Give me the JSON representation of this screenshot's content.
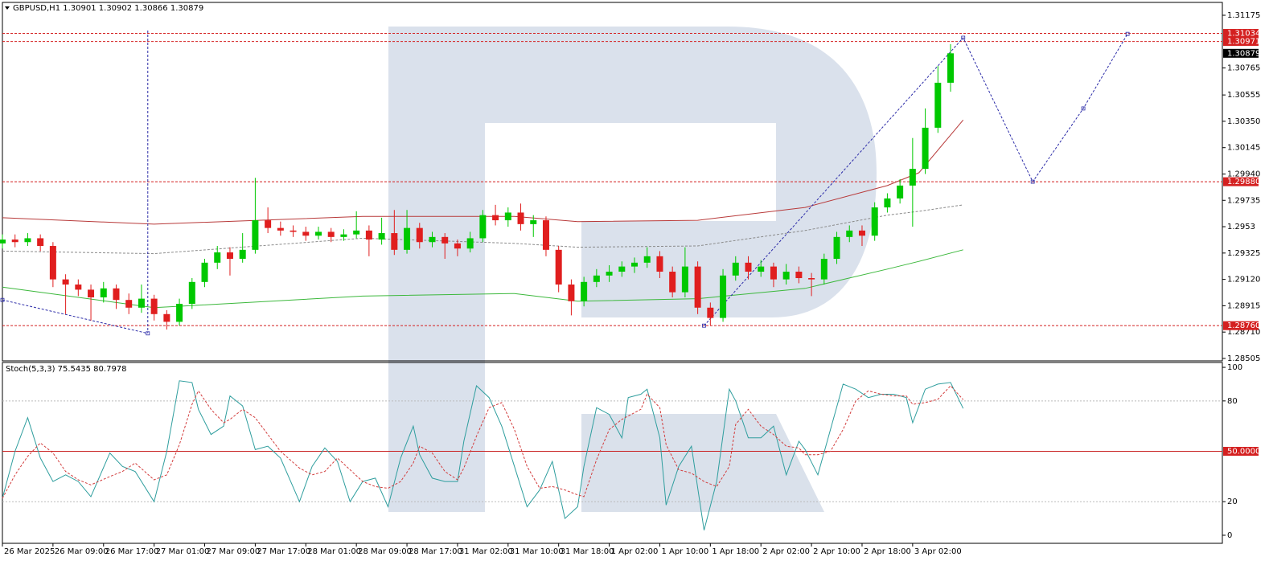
{
  "chart_data": [
    {
      "type": "candlestick",
      "title": "GBPUSD,H1 1.30901 1.30902 1.30866 1.30879",
      "up_color": "#00c800",
      "down_color": "#e01e1e",
      "xlim": [
        0,
        193
      ],
      "ylim": [
        1.28486,
        1.31275
      ],
      "yticks": [
        1.31175,
        1.30765,
        1.30555,
        {
          "value": 1.3035,
          "label": "1.30350"
        },
        1.30145,
        {
          "value": 1.2994,
          "label": "1.29940"
        },
        1.29735,
        1.2953,
        1.29325,
        {
          "value": 1.2912,
          "label": "1.29120"
        },
        1.28915,
        {
          "value": 1.2871,
          "label": "1.28710"
        },
        1.28505
      ],
      "xticks": [
        {
          "value": 0,
          "label": "26 Mar 2025"
        },
        {
          "value": 8,
          "label": "26 Mar 09:00"
        },
        {
          "value": 16,
          "label": "26 Mar 17:00"
        },
        {
          "value": 24,
          "label": "27 Mar 01:00"
        },
        {
          "value": 32,
          "label": "27 Mar 09:00"
        },
        {
          "value": 40,
          "label": "27 Mar 17:00"
        },
        {
          "value": 48,
          "label": "28 Mar 01:00"
        },
        {
          "value": 56,
          "label": "28 Mar 09:00"
        },
        {
          "value": 64,
          "label": "28 Mar 17:00"
        },
        {
          "value": 72,
          "label": "31 Mar 02:00"
        },
        {
          "value": 80,
          "label": "31 Mar 10:00"
        },
        {
          "value": 88,
          "label": "31 Mar 18:00"
        },
        {
          "value": 96,
          "label": "1 Apr 02:00"
        },
        {
          "value": 104,
          "label": "1 Apr 10:00"
        },
        {
          "value": 112,
          "label": "1 Apr 18:00"
        },
        {
          "value": 120,
          "label": "2 Apr 02:00"
        },
        {
          "value": 128,
          "label": "2 Apr 10:00"
        },
        {
          "value": 136,
          "label": "2 Apr 18:00"
        },
        {
          "value": 144,
          "label": "3 Apr 02:00"
        }
      ],
      "x": [
        0,
        2,
        4,
        6,
        8,
        10,
        12,
        14,
        16,
        18,
        20,
        22,
        24,
        26,
        28,
        30,
        32,
        34,
        36,
        38,
        40,
        42,
        44,
        46,
        48,
        50,
        52,
        54,
        56,
        58,
        60,
        62,
        64,
        66,
        68,
        70,
        72,
        74,
        76,
        78,
        80,
        82,
        84,
        86,
        88,
        90,
        92,
        94,
        96,
        98,
        100,
        102,
        104,
        106,
        108,
        110,
        112,
        114,
        116,
        118,
        120,
        122,
        124,
        126,
        128,
        130,
        132,
        134,
        136,
        138,
        140,
        142,
        144,
        146,
        148,
        150
      ],
      "open": [
        1.294,
        1.2943,
        1.2941,
        1.2944,
        1.2938,
        1.2912,
        1.2908,
        1.2904,
        1.2898,
        1.2905,
        1.2896,
        1.289,
        1.2897,
        1.2885,
        1.2879,
        1.2893,
        1.291,
        1.2925,
        1.2933,
        1.2928,
        1.2935,
        1.2958,
        1.2952,
        1.295,
        1.2949,
        1.2946,
        1.2949,
        1.2945,
        1.2947,
        1.295,
        1.2943,
        1.2948,
        1.2935,
        1.2952,
        1.2941,
        1.2945,
        1.294,
        1.2936,
        1.2944,
        1.2962,
        1.2958,
        1.2964,
        1.2955,
        1.2958,
        1.2935,
        1.2908,
        1.2895,
        1.291,
        1.2915,
        1.2918,
        1.2922,
        1.2925,
        1.293,
        1.2918,
        1.2902,
        1.2922,
        1.289,
        1.2882,
        1.2915,
        1.2925,
        1.2918,
        1.2922,
        1.2912,
        1.2918,
        1.2913,
        1.2912,
        1.2928,
        1.2945,
        1.295,
        1.2946,
        1.2968,
        1.2975,
        1.2985,
        1.2998,
        1.303,
        1.3065
      ],
      "high": [
        1.2947,
        1.2947,
        1.2948,
        1.2947,
        1.2941,
        1.2916,
        1.2912,
        1.2908,
        1.291,
        1.2908,
        1.2901,
        1.2908,
        1.29,
        1.2888,
        1.2897,
        1.2913,
        1.2928,
        1.2938,
        1.2937,
        1.2948,
        1.2991,
        1.2968,
        1.2957,
        1.2954,
        1.2953,
        1.2953,
        1.2952,
        1.2951,
        1.2965,
        1.2954,
        1.296,
        1.2966,
        1.2966,
        1.2956,
        1.2949,
        1.2948,
        1.2943,
        1.2949,
        1.2966,
        1.297,
        1.2968,
        1.2971,
        1.2962,
        1.2961,
        1.2938,
        1.2912,
        1.2914,
        1.292,
        1.2923,
        1.2926,
        1.2929,
        1.2937,
        1.2934,
        1.2922,
        1.2937,
        1.2926,
        1.2894,
        1.292,
        1.293,
        1.293,
        1.2927,
        1.2925,
        1.2924,
        1.2922,
        1.2917,
        1.2932,
        1.2949,
        1.2954,
        1.2954,
        1.2972,
        1.2979,
        1.299,
        1.3022,
        1.3045,
        1.3078,
        1.3095
      ],
      "low": [
        1.2936,
        1.2937,
        1.2938,
        1.2934,
        1.2906,
        1.2885,
        1.2899,
        1.288,
        1.2894,
        1.2889,
        1.2885,
        1.2886,
        1.288,
        1.2873,
        1.2876,
        1.2889,
        1.2906,
        1.292,
        1.2915,
        1.2925,
        1.2932,
        1.2948,
        1.2946,
        1.2945,
        1.2942,
        1.2943,
        1.2941,
        1.2942,
        1.2944,
        1.293,
        1.2939,
        1.2931,
        1.2932,
        1.2936,
        1.2937,
        1.2928,
        1.293,
        1.2933,
        1.2941,
        1.2954,
        1.2953,
        1.295,
        1.2945,
        1.293,
        1.2902,
        1.2884,
        1.2891,
        1.2906,
        1.291,
        1.2914,
        1.2917,
        1.2921,
        1.2913,
        1.2898,
        1.2898,
        1.2885,
        1.2876,
        1.2879,
        1.2911,
        1.2912,
        1.2914,
        1.2906,
        1.2908,
        1.2909,
        1.2899,
        1.2908,
        1.2924,
        1.2941,
        1.2938,
        1.2942,
        1.2964,
        1.2971,
        1.2953,
        1.2994,
        1.3026,
        1.3058
      ],
      "close": [
        1.2943,
        1.2941,
        1.2944,
        1.2938,
        1.2912,
        1.2908,
        1.2904,
        1.2898,
        1.2905,
        1.2896,
        1.289,
        1.2897,
        1.2885,
        1.2879,
        1.2893,
        1.291,
        1.2925,
        1.2933,
        1.2928,
        1.2935,
        1.2958,
        1.2952,
        1.295,
        1.2949,
        1.2946,
        1.2949,
        1.2945,
        1.2947,
        1.295,
        1.2943,
        1.2948,
        1.2935,
        1.2952,
        1.2941,
        1.2945,
        1.294,
        1.2936,
        1.2944,
        1.2962,
        1.2958,
        1.2964,
        1.2955,
        1.2958,
        1.2935,
        1.2908,
        1.2895,
        1.291,
        1.2915,
        1.2918,
        1.2922,
        1.2925,
        1.293,
        1.2918,
        1.2902,
        1.2922,
        1.289,
        1.2882,
        1.2915,
        1.2925,
        1.2918,
        1.2922,
        1.2912,
        1.2918,
        1.2913,
        1.2912,
        1.2928,
        1.2945,
        1.295,
        1.2946,
        1.2968,
        1.2975,
        1.2985,
        1.2998,
        1.303,
        1.3065,
        1.30879
      ],
      "series": [
        {
          "color": "#b83a3a",
          "style": "solid",
          "x": [
            0,
            24,
            57,
            81,
            91,
            110,
            127,
            140,
            145,
            152
          ],
          "values": [
            1.296,
            1.2955,
            1.2961,
            1.2961,
            1.2957,
            1.2958,
            1.2968,
            1.2985,
            1.2995,
            1.3036
          ]
        },
        {
          "color": "#8a8a8a",
          "style": "dashed",
          "x": [
            0,
            24,
            57,
            81,
            91,
            110,
            127,
            140,
            145,
            152
          ],
          "values": [
            1.2934,
            1.2932,
            1.2944,
            1.294,
            1.2937,
            1.2938,
            1.295,
            1.2962,
            1.2965,
            1.297
          ]
        },
        {
          "color": "#3cb83c",
          "style": "solid",
          "x": [
            0,
            24,
            57,
            81,
            91,
            110,
            127,
            140,
            145,
            152
          ],
          "values": [
            1.2906,
            1.289,
            1.2899,
            1.2901,
            1.2895,
            1.2897,
            1.2905,
            1.292,
            1.2926,
            1.2935
          ]
        }
      ],
      "levels": [
        1.31034,
        1.30971,
        {
          "value": 1.2988,
          "label": "1.29880"
        },
        {
          "value": 1.2876,
          "label": "1.28760"
        }
      ],
      "level_color": "#d42020",
      "current_price": 1.30879,
      "forecast": {
        "color": "#2c2ca8",
        "x": [
          111,
          152,
          163,
          171,
          178
        ],
        "values": [
          1.2876,
          1.31,
          1.2988,
          1.3045,
          1.3103
        ]
      },
      "trendline": {
        "color": "#2c2ca8",
        "x": [
          0,
          23
        ],
        "values": [
          1.2896,
          1.287
        ]
      },
      "vlines": [
        23
      ]
    },
    {
      "type": "line",
      "title": "Stoch(5,3,3) 75.5435 80.7978",
      "xlim": [
        0,
        193
      ],
      "ylim": [
        -4.8,
        102.9
      ],
      "yticks": [
        0,
        20,
        80,
        100
      ],
      "levels": [
        20,
        80
      ],
      "mid_level": {
        "value": 50,
        "label": "50.0000"
      },
      "x": [
        0,
        2,
        4,
        6,
        8,
        10,
        12,
        14,
        17,
        19,
        21,
        24,
        26,
        28,
        30,
        31,
        33,
        35,
        36,
        38,
        40,
        42,
        44,
        47,
        49,
        51,
        53,
        55,
        57,
        59,
        61,
        63,
        65,
        66,
        68,
        70,
        72,
        73,
        75,
        77,
        79,
        81,
        83,
        85,
        87,
        89,
        91,
        92,
        94,
        96,
        98,
        99,
        101,
        102,
        104,
        105,
        107,
        109,
        111,
        113,
        115,
        116,
        118,
        120,
        122,
        124,
        126,
        127,
        129,
        131,
        133,
        135,
        137,
        139,
        141,
        143,
        144,
        146,
        148,
        150,
        152
      ],
      "series": [
        {
          "color": "#2f9e9e",
          "style": "solid",
          "values": [
            22,
            50,
            70,
            46,
            32,
            36,
            32,
            23,
            49,
            41,
            38,
            20,
            50,
            92,
            91,
            75,
            60,
            65,
            83,
            77,
            51,
            53,
            46,
            20,
            41,
            52,
            44,
            20,
            32,
            34,
            17,
            46,
            65,
            48,
            34,
            32,
            32,
            56,
            89,
            82,
            65,
            41,
            17,
            27,
            44,
            10,
            17,
            41,
            76,
            72,
            58,
            82,
            84,
            87,
            58,
            18,
            41,
            53,
            3,
            32,
            87,
            80,
            58,
            58,
            65,
            36,
            56,
            51,
            36,
            63,
            90,
            87,
            82,
            84,
            84,
            82,
            67,
            87,
            90,
            91,
            75.5435
          ]
        },
        {
          "color": "#d23c3c",
          "style": "dashed",
          "values": [
            22,
            36,
            47,
            55,
            49,
            38,
            33,
            30,
            35,
            38,
            43,
            33,
            36,
            54,
            78,
            86,
            75,
            67,
            69,
            75,
            70,
            60,
            50,
            40,
            36,
            38,
            46,
            39,
            32,
            29,
            28,
            32,
            43,
            53,
            49,
            38,
            33,
            40,
            59,
            76,
            79,
            63,
            41,
            28,
            29,
            27,
            24,
            23,
            45,
            63,
            69,
            71,
            75,
            84,
            76,
            54,
            39,
            37,
            32,
            29,
            41,
            66,
            75,
            65,
            60,
            53,
            52,
            48,
            48,
            50,
            63,
            80,
            86,
            84,
            83,
            83,
            78,
            79,
            81,
            89,
            80.7978
          ]
        }
      ]
    }
  ]
}
